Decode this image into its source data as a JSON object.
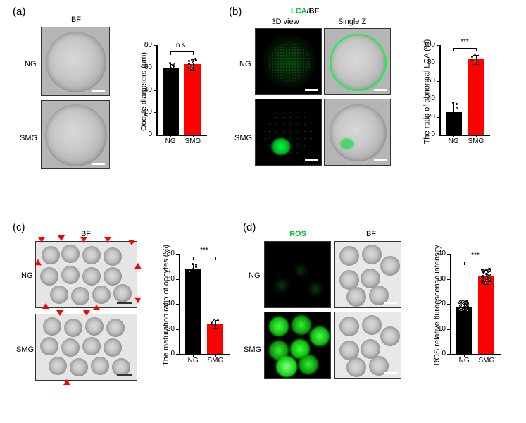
{
  "panels": {
    "a": {
      "label": "(a)"
    },
    "b": {
      "label": "(b)"
    },
    "c": {
      "label": "(c)"
    },
    "d": {
      "label": "(d)"
    }
  },
  "headers": {
    "a_bf": "BF",
    "b_lca": "LCA",
    "b_bf": "/BF",
    "b_3d": "3D view",
    "b_single": "Single Z",
    "c_bf": "BF",
    "d_ros": "ROS",
    "d_bf": "BF"
  },
  "rows": {
    "ng": "NG",
    "smg": "SMG"
  },
  "chartA": {
    "y_title": "Oocyte diameters (μm)",
    "ymax": 80,
    "ticks": [
      0,
      20,
      40,
      60,
      80
    ],
    "ng": {
      "mean": 60,
      "err": 4,
      "color": "#000000"
    },
    "smg": {
      "mean": 63,
      "err": 5,
      "color": "#ff0000"
    },
    "sig": "n.s.",
    "x": [
      "NG",
      "SMG"
    ]
  },
  "chartB": {
    "y_title": "The ratio of abnormal LCA (%)",
    "ymax": 100,
    "ticks": [
      0,
      20,
      40,
      60,
      80,
      100
    ],
    "ng": {
      "mean": 25,
      "err": 12,
      "color": "#000000"
    },
    "smg": {
      "mean": 84,
      "err": 5,
      "color": "#ff0000"
    },
    "sig": "***",
    "x": [
      "NG",
      "SMG"
    ]
  },
  "chartC": {
    "y_title": "The maturation ratio of oocytes (%)",
    "ymax": 80,
    "ticks": [
      0,
      20,
      40,
      60,
      80
    ],
    "ng": {
      "mean": 68,
      "err": 4,
      "color": "#000000"
    },
    "smg": {
      "mean": 24,
      "err": 3,
      "color": "#ff0000"
    },
    "sig": "***",
    "x": [
      "NG",
      "SMG"
    ]
  },
  "chartD": {
    "y_title": "ROS relative fluroescense intensity",
    "ymax": 40,
    "ticks": [
      0,
      10,
      20,
      30,
      40
    ],
    "ng": {
      "mean": 19,
      "err": 2,
      "color": "#000000"
    },
    "smg": {
      "mean": 31,
      "err": 3,
      "color": "#ff0000"
    },
    "sig": "***",
    "x": [
      "NG",
      "SMG"
    ]
  },
  "colors": {
    "green": "#00ff41"
  }
}
